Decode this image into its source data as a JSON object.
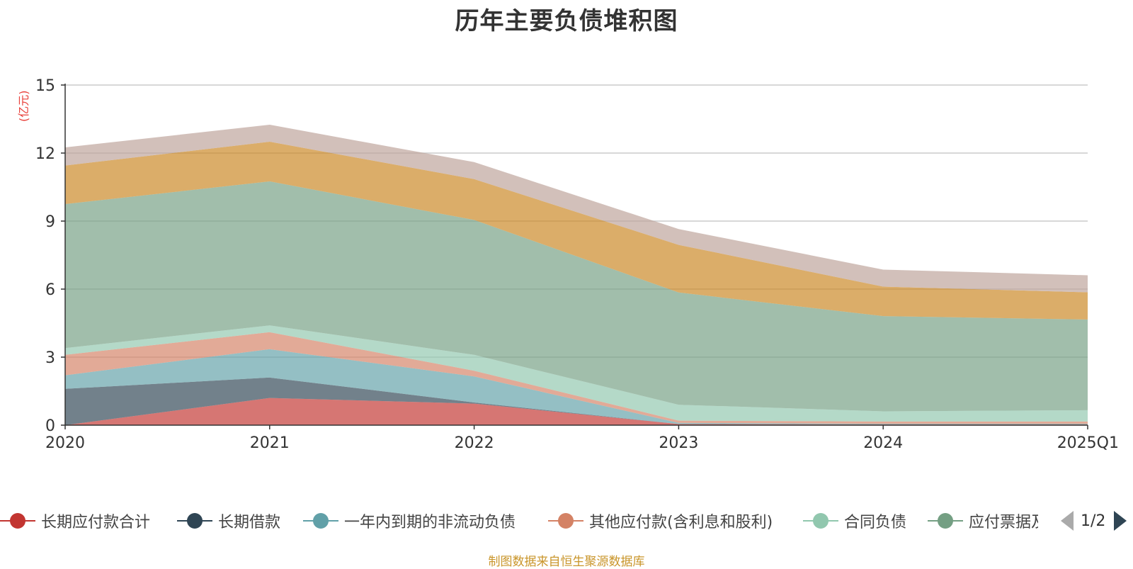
{
  "title": "历年主要负债堆积图",
  "unit_label": "(亿元)",
  "footer": "制图数据来自恒生聚源数据库",
  "legend": {
    "page_indicator": "1/2"
  },
  "colors": {
    "grid": "#cccccc",
    "axis": "#333333"
  },
  "chart_data": {
    "type": "area",
    "stacked": true,
    "x": [
      "2020",
      "2021",
      "2022",
      "2023",
      "2024",
      "2025Q1"
    ],
    "ylim": [
      0,
      15
    ],
    "yticks": [
      0,
      3,
      6,
      9,
      12,
      15
    ],
    "grid": true,
    "legend_position": "bottom",
    "series": [
      {
        "name": "长期应付款合计",
        "color": "#c23531",
        "values": [
          0.0,
          1.2,
          0.95,
          0.05,
          0.03,
          0.03
        ]
      },
      {
        "name": "长期借款",
        "color": "#2f4554",
        "values": [
          1.6,
          0.9,
          0.05,
          0.0,
          0.0,
          0.0
        ]
      },
      {
        "name": "一年内到期的非流动负债",
        "color": "#61a0a8",
        "values": [
          0.6,
          1.25,
          1.15,
          0.05,
          0.03,
          0.03
        ]
      },
      {
        "name": "其他应付款(含利息和股利)",
        "color": "#d48265",
        "values": [
          0.9,
          0.75,
          0.25,
          0.1,
          0.1,
          0.1
        ]
      },
      {
        "name": "合同负债",
        "color": "#91c7ae",
        "values": [
          0.3,
          0.3,
          0.7,
          0.7,
          0.45,
          0.5
        ]
      },
      {
        "name": "应付票据及应付账款",
        "color": "#749f83",
        "values": [
          6.35,
          6.35,
          5.95,
          4.95,
          4.2,
          4.0
        ]
      },
      {
        "name": "",
        "color": "#ca8622",
        "values": [
          1.7,
          1.75,
          1.8,
          2.1,
          1.3,
          1.2
        ]
      },
      {
        "name": "",
        "color": "#bda29a",
        "values": [
          0.8,
          0.75,
          0.75,
          0.7,
          0.75,
          0.75
        ]
      }
    ]
  }
}
